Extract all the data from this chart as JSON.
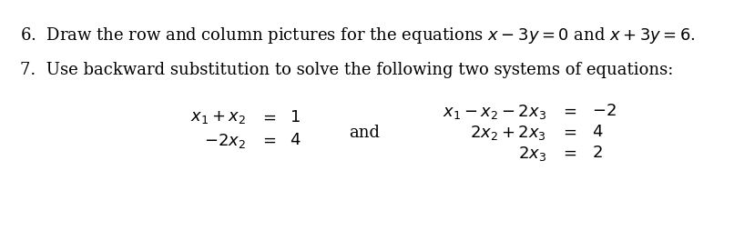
{
  "background_color": "#ffffff",
  "line6": "6.  Draw the row and column pictures for the equations $x - 3y = 0$ and $x + 3y = 6$.",
  "line7": "7.  Use backward substitution to solve the following two systems of equations:",
  "sys1_eq1_lhs": "$x_1 + x_2$",
  "sys1_eq1_eq": "$=$",
  "sys1_eq1_rhs": "$1$",
  "sys1_eq2_lhs": "$-2x_2$",
  "sys1_eq2_eq": "$=$",
  "sys1_eq2_rhs": "$4$",
  "and": "and",
  "sys2_eq1_lhs": "$x_1 - x_2 - 2x_3$",
  "sys2_eq1_eq": "$=$",
  "sys2_eq1_rhs": "$-2$",
  "sys2_eq2_lhs": "$2x_2 + 2x_3$",
  "sys2_eq2_eq": "$=$",
  "sys2_eq2_rhs": "$4$",
  "sys2_eq3_lhs": "$2x_3$",
  "sys2_eq3_eq": "$=$",
  "sys2_eq3_rhs": "$2$",
  "fontsize": 13
}
